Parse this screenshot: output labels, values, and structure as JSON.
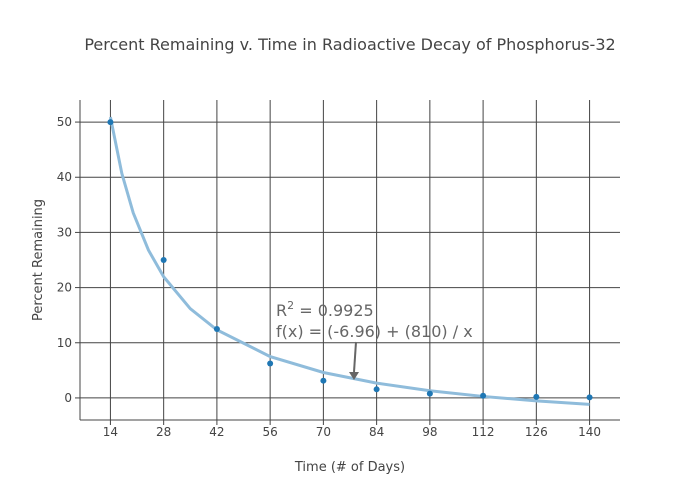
{
  "chart_data": {
    "type": "scatter",
    "title": "Percent Remaining v. Time in Radioactive Decay of Phosphorus-32",
    "x_label": "Time (# of Days)",
    "y_label": "Percent Remaining",
    "xlim": [
      6,
      148
    ],
    "xticks": [
      14,
      28,
      42,
      56,
      70,
      84,
      98,
      112,
      126,
      140
    ],
    "ylim": [
      -4,
      54
    ],
    "yticks": [
      0,
      10,
      20,
      30,
      40,
      50
    ],
    "grid": true,
    "series": [
      {
        "kind": "points",
        "color": "#1f77b4",
        "x": [
          14,
          28,
          42,
          56,
          70,
          84,
          98,
          112,
          126,
          140
        ],
        "values": [
          50,
          25,
          12.5,
          6.25,
          3.125,
          1.5625,
          0.78,
          0.39,
          0.195,
          0.098
        ]
      },
      {
        "kind": "line",
        "color": "#8fbcdb",
        "x": [
          14,
          17,
          20,
          24,
          28,
          35,
          42,
          56,
          70,
          84,
          98,
          112,
          126,
          140
        ],
        "values": [
          50.9,
          40.69,
          33.54,
          26.79,
          21.97,
          16.18,
          12.33,
          7.5,
          4.61,
          2.68,
          1.31,
          0.27,
          -0.53,
          -1.17
        ]
      }
    ],
    "annotation": {
      "r2_base": "R",
      "r2_exponent": "2",
      "r2_value": " = 0.9925",
      "formula": "f(x) = (-6.96) + (810) / x"
    }
  }
}
